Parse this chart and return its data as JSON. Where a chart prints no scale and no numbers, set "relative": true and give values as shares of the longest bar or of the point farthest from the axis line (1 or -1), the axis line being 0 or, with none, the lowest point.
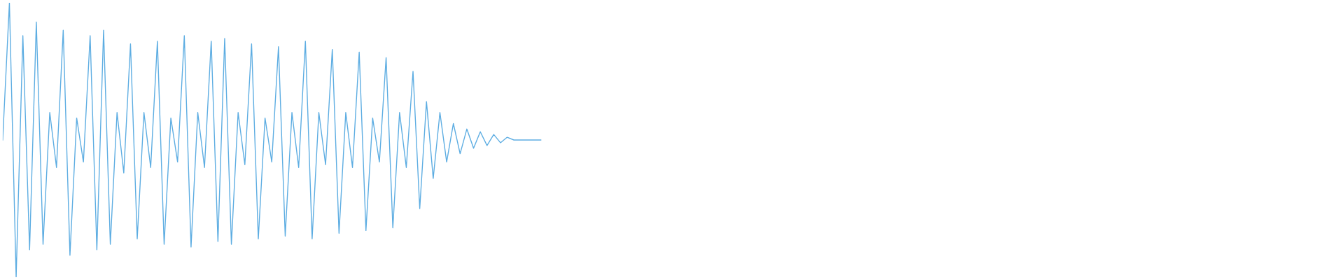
{
  "chart_data": {
    "type": "line",
    "relative": true,
    "color": "#5dade2",
    "categories": [
      null,
      null,
      null,
      null,
      null,
      null,
      null,
      null,
      null,
      null,
      null,
      null,
      null,
      null,
      null,
      null,
      null,
      null,
      null,
      null,
      null,
      null,
      null,
      null,
      null,
      null,
      null,
      null,
      null,
      null,
      null,
      null,
      null,
      null,
      null,
      null,
      null,
      null,
      null,
      null,
      null,
      null,
      null,
      null,
      null,
      null,
      null,
      null,
      null,
      null,
      null,
      null,
      null,
      null,
      null,
      null,
      null,
      null,
      null,
      null,
      null,
      null,
      null,
      null,
      null,
      null,
      null,
      null,
      null,
      null,
      null,
      null,
      null,
      null,
      null,
      null,
      null,
      null,
      null,
      null,
      null,
      null,
      null,
      null,
      null,
      null,
      null,
      null,
      null,
      null,
      null,
      null,
      null,
      null,
      null,
      null,
      null,
      null,
      null,
      null,
      null,
      null,
      null,
      null,
      null,
      null,
      null,
      null,
      null,
      null,
      null,
      null,
      null,
      null,
      null,
      null,
      null,
      null,
      null,
      null,
      null,
      null,
      null,
      null,
      null,
      null,
      null,
      null,
      null,
      null,
      null,
      null,
      null,
      null,
      null,
      null,
      null,
      null,
      null,
      null,
      null,
      null,
      null,
      null,
      null,
      null,
      null,
      null,
      null,
      null,
      null,
      null,
      null,
      null,
      null,
      null,
      null,
      null,
      null,
      null,
      null,
      null,
      null,
      null,
      null,
      null,
      null,
      null,
      null,
      null,
      null,
      null,
      null,
      null,
      null,
      null,
      null,
      null,
      null,
      null,
      null,
      null,
      null,
      null,
      null,
      null,
      null,
      null,
      null,
      null,
      null,
      null,
      null,
      null,
      null,
      null,
      null,
      null,
      null,
      null
    ],
    "values": [
      0.5,
      1.0,
      0.0,
      0.88,
      0.1,
      0.93,
      0.12,
      0.6,
      0.4,
      0.9,
      0.08,
      0.58,
      0.42,
      0.88,
      0.1,
      0.9,
      0.12,
      0.6,
      0.38,
      0.85,
      0.14,
      0.6,
      0.4,
      0.86,
      0.12,
      0.58,
      0.42,
      0.88,
      0.11,
      0.6,
      0.4,
      0.86,
      0.13,
      0.87,
      0.12,
      0.6,
      0.41,
      0.85,
      0.14,
      0.58,
      0.42,
      0.84,
      0.15,
      0.6,
      0.4,
      0.86,
      0.14,
      0.6,
      0.41,
      0.83,
      0.16,
      0.6,
      0.4,
      0.82,
      0.17,
      0.58,
      0.42,
      0.8,
      0.18,
      0.6,
      0.4,
      0.75,
      0.25,
      0.64,
      0.36,
      0.6,
      0.42,
      0.56,
      0.45,
      0.54,
      0.47,
      0.53,
      0.48,
      0.52,
      0.49,
      0.51,
      0.5,
      0.5,
      0.5,
      0.5,
      0.5,
      null,
      null,
      null,
      null,
      null,
      null,
      null,
      null,
      null,
      null,
      null,
      null,
      null,
      null,
      null,
      null,
      null,
      null,
      null,
      null,
      null,
      null,
      null,
      null,
      null,
      null,
      null,
      null,
      null,
      null,
      null,
      null,
      null,
      null,
      null,
      null,
      null,
      null,
      null,
      null,
      null,
      null,
      null,
      null,
      null,
      null,
      null,
      null,
      null,
      null,
      null,
      null,
      null,
      null,
      null,
      null,
      null,
      null,
      null,
      null,
      null,
      null,
      null,
      null,
      null,
      null,
      null,
      null,
      null,
      null,
      null,
      null,
      null,
      null,
      null,
      null,
      null,
      null,
      null,
      null,
      null,
      null,
      null,
      null,
      null,
      null,
      null,
      null,
      null,
      null,
      null,
      null,
      null,
      null,
      null,
      null,
      null,
      null,
      null,
      null,
      null,
      null,
      null,
      null,
      null,
      null,
      null,
      null,
      null,
      null,
      null,
      null,
      null,
      null,
      null,
      null,
      null,
      null,
      null
    ]
  }
}
